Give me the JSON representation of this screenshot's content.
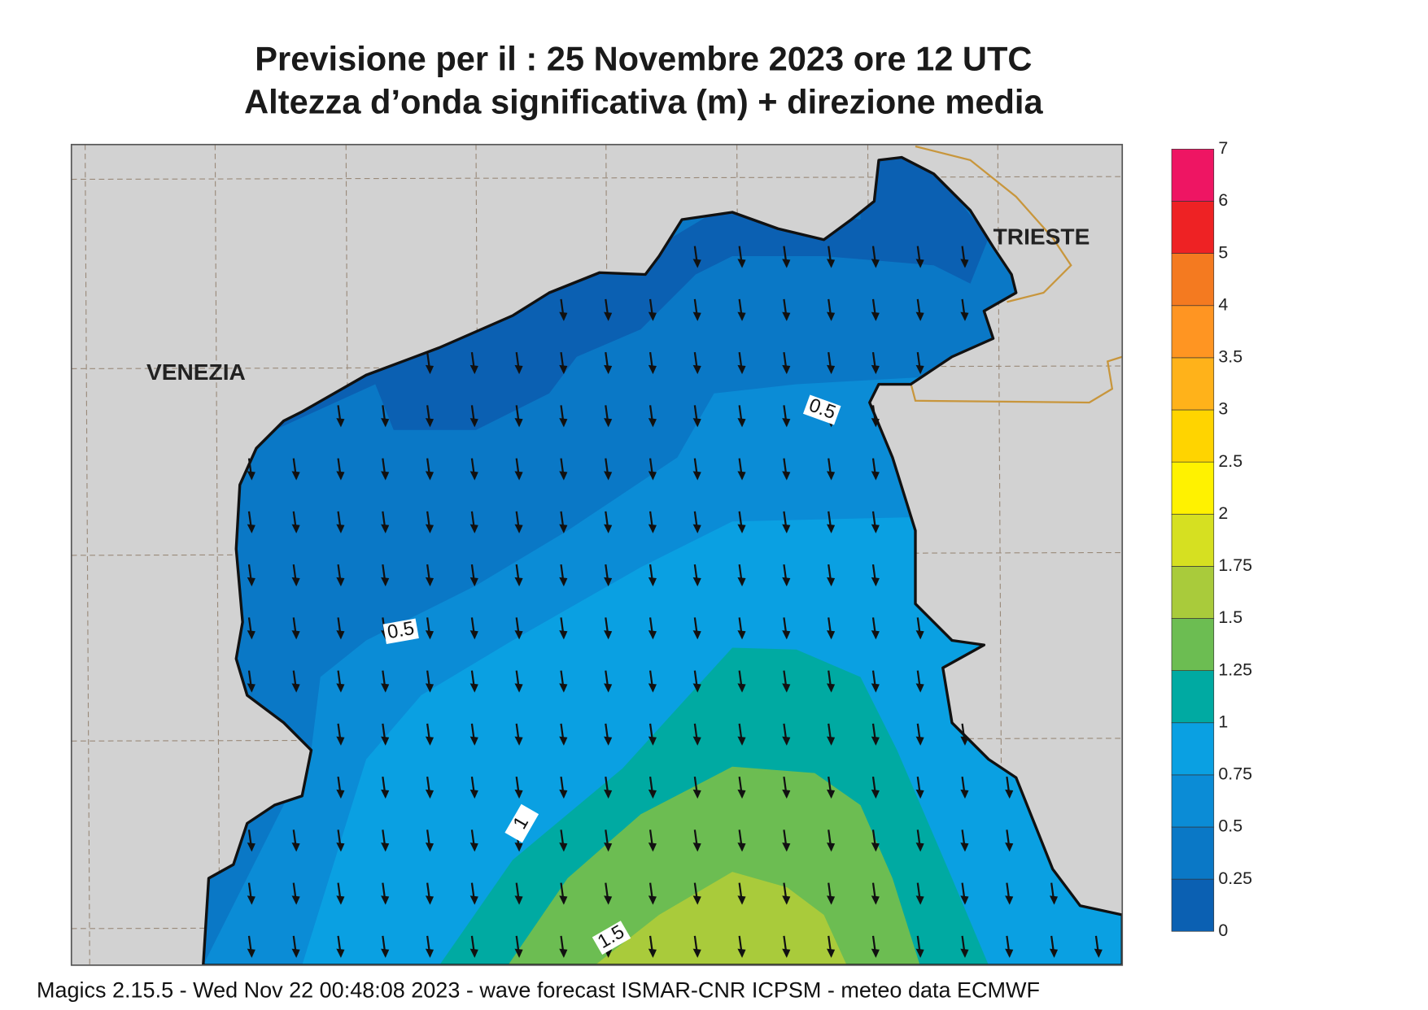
{
  "header": {
    "title_line1": "Previsione per il  :  25 Novembre  2023   ore 12 UTC",
    "title_line2": "Altezza d’onda significativa (m) + direzione media"
  },
  "places": [
    "VENEZIA",
    "TRIESTE"
  ],
  "contour_labels": [
    0.5,
    0.5,
    1,
    1.5
  ],
  "legend": {
    "levels": [
      0,
      0.25,
      0.5,
      0.75,
      1,
      1.25,
      1.5,
      1.75,
      2,
      2.5,
      3,
      3.5,
      4,
      5,
      6,
      7
    ],
    "colors": [
      "#0b60b2",
      "#0a78c6",
      "#0b8cd6",
      "#0aa0e2",
      "#00aaa2",
      "#6cbd52",
      "#a9cb3b",
      "#d6e021",
      "#fff200",
      "#ffd400",
      "#ffb21a",
      "#ff9522",
      "#f47a20",
      "#ee2224",
      "#ee1563"
    ]
  },
  "footer": "Magics 2.15.5 - Wed Nov 22 00:48:08 2023 - wave forecast  ISMAR-CNR  ICPSM - meteo data   ECMWF"
}
